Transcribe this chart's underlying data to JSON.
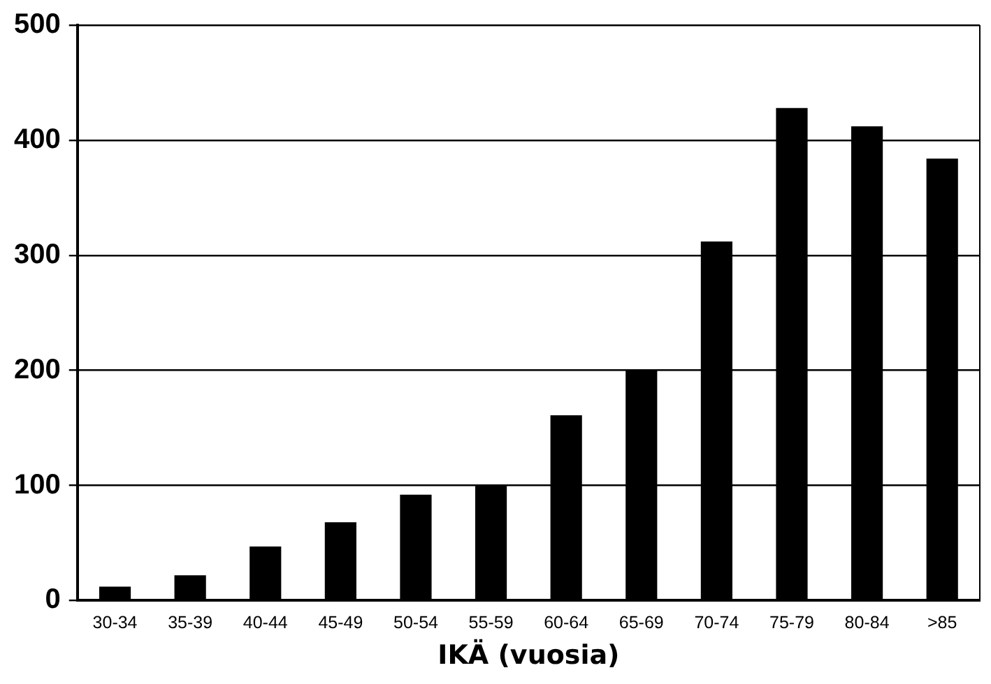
{
  "chart_data": {
    "type": "bar",
    "xlabel": "IKÄ (vuosia)",
    "categories": [
      "30-34",
      "35-39",
      "40-44",
      "45-49",
      "50-54",
      "55-59",
      "60-64",
      "65-69",
      "70-74",
      "75-79",
      "80-84",
      ">85"
    ],
    "values": [
      12,
      22,
      47,
      68,
      92,
      100,
      161,
      200,
      312,
      428,
      412,
      384
    ],
    "color": "#000000",
    "ylim": [
      0,
      500
    ],
    "yticks": [
      0,
      100,
      200,
      300,
      400,
      500
    ],
    "grid": "y",
    "legend": false
  }
}
